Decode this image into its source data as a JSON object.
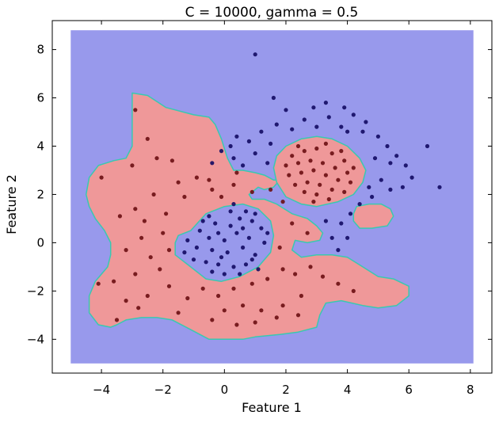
{
  "chart_data": {
    "type": "scatter",
    "title": "C = 10000, gamma = 0.5",
    "xlabel": "Feature 1",
    "ylabel": "Feature 2",
    "xlim": [
      -5.6,
      8.7
    ],
    "ylim": [
      -5.4,
      9.2
    ],
    "xticks": [
      -4,
      -2,
      0,
      2,
      4,
      6,
      8
    ],
    "xtick_labels": [
      "−4",
      "−2",
      "0",
      "2",
      "4",
      "6",
      "8"
    ],
    "yticks": [
      -4,
      -2,
      0,
      2,
      4,
      6,
      8
    ],
    "ytick_labels": [
      "−4",
      "−2",
      "0",
      "2",
      "4",
      "6",
      "8"
    ],
    "grid": false,
    "legend": "none",
    "background_region": {
      "class": 0,
      "x": [
        -5.0,
        8.1
      ],
      "y": [
        -5.0,
        8.8
      ],
      "color": "#9899ec"
    },
    "decision_regions": [
      {
        "class": 1,
        "color": "#ef9899",
        "polygon": [
          [
            -3.0,
            6.2
          ],
          [
            -2.5,
            6.1
          ],
          [
            -1.9,
            5.6
          ],
          [
            -1.0,
            5.3
          ],
          [
            -0.5,
            5.2
          ],
          [
            -0.3,
            4.9
          ],
          [
            -0.1,
            4.3
          ],
          [
            0.1,
            3.5
          ],
          [
            0.3,
            3.0
          ],
          [
            0.6,
            3.0
          ],
          [
            1.0,
            2.9
          ],
          [
            1.3,
            2.8
          ],
          [
            1.6,
            2.6
          ],
          [
            1.8,
            2.6
          ],
          [
            1.6,
            2.3
          ],
          [
            1.3,
            2.2
          ],
          [
            1.1,
            2.3
          ],
          [
            0.8,
            2.0
          ],
          [
            0.9,
            1.8
          ],
          [
            1.3,
            1.8
          ],
          [
            1.7,
            1.6
          ],
          [
            2.2,
            1.2
          ],
          [
            2.7,
            1.0
          ],
          [
            3.0,
            0.7
          ],
          [
            3.2,
            0.4
          ],
          [
            3.1,
            0.1
          ],
          [
            2.7,
            0.0
          ],
          [
            2.3,
            0.1
          ],
          [
            2.2,
            -0.3
          ],
          [
            2.5,
            -0.6
          ],
          [
            3.0,
            -0.5
          ],
          [
            3.5,
            -0.5
          ],
          [
            4.0,
            -0.6
          ],
          [
            4.5,
            -1.0
          ],
          [
            5.0,
            -1.4
          ],
          [
            5.5,
            -1.5
          ],
          [
            6.0,
            -1.8
          ],
          [
            6.0,
            -2.2
          ],
          [
            5.6,
            -2.6
          ],
          [
            5.0,
            -2.7
          ],
          [
            4.5,
            -2.6
          ],
          [
            3.8,
            -2.4
          ],
          [
            3.3,
            -2.5
          ],
          [
            3.1,
            -3.0
          ],
          [
            3.0,
            -3.5
          ],
          [
            2.4,
            -3.7
          ],
          [
            1.8,
            -3.8
          ],
          [
            1.0,
            -3.9
          ],
          [
            0.6,
            -4.0
          ],
          [
            0.0,
            -4.0
          ],
          [
            -0.5,
            -4.0
          ],
          [
            -1.1,
            -3.6
          ],
          [
            -1.7,
            -3.2
          ],
          [
            -2.2,
            -3.1
          ],
          [
            -2.7,
            -3.1
          ],
          [
            -3.2,
            -3.2
          ],
          [
            -3.5,
            -3.4
          ],
          [
            -3.7,
            -3.5
          ],
          [
            -4.1,
            -3.4
          ],
          [
            -4.4,
            -2.9
          ],
          [
            -4.4,
            -2.2
          ],
          [
            -4.2,
            -1.6
          ],
          [
            -3.8,
            -1.0
          ],
          [
            -3.7,
            -0.5
          ],
          [
            -3.7,
            0.0
          ],
          [
            -3.9,
            0.5
          ],
          [
            -4.2,
            1.0
          ],
          [
            -4.4,
            1.5
          ],
          [
            -4.5,
            2.0
          ],
          [
            -4.4,
            2.7
          ],
          [
            -4.1,
            3.2
          ],
          [
            -3.6,
            3.4
          ],
          [
            -3.2,
            3.5
          ],
          [
            -3.0,
            4.0
          ],
          [
            -3.0,
            4.6
          ],
          [
            -3.0,
            5.3
          ]
        ]
      },
      {
        "class": 1,
        "color": "#ef9899",
        "polygon": [
          [
            2.0,
            4.0
          ],
          [
            2.5,
            4.3
          ],
          [
            3.0,
            4.4
          ],
          [
            3.5,
            4.3
          ],
          [
            4.0,
            4.0
          ],
          [
            4.4,
            3.5
          ],
          [
            4.6,
            3.0
          ],
          [
            4.5,
            2.5
          ],
          [
            4.2,
            2.0
          ],
          [
            3.7,
            1.7
          ],
          [
            3.0,
            1.5
          ],
          [
            2.5,
            1.6
          ],
          [
            2.0,
            1.9
          ],
          [
            1.7,
            2.5
          ],
          [
            1.6,
            3.1
          ],
          [
            1.7,
            3.6
          ]
        ]
      },
      {
        "class": 1,
        "color": "#ef9899",
        "polygon": [
          [
            4.3,
            1.5
          ],
          [
            4.7,
            1.6
          ],
          [
            5.1,
            1.6
          ],
          [
            5.4,
            1.4
          ],
          [
            5.5,
            1.1
          ],
          [
            5.3,
            0.7
          ],
          [
            4.8,
            0.6
          ],
          [
            4.4,
            0.6
          ],
          [
            4.2,
            0.9
          ],
          [
            4.2,
            1.2
          ]
        ]
      }
    ],
    "decision_holes": [
      {
        "class": 0,
        "color": "#9899ec",
        "polygon": [
          [
            -1.1,
            0.5
          ],
          [
            -0.6,
            1.2
          ],
          [
            0.0,
            1.5
          ],
          [
            0.6,
            1.6
          ],
          [
            1.1,
            1.4
          ],
          [
            1.5,
            0.9
          ],
          [
            1.6,
            0.3
          ],
          [
            1.5,
            -0.4
          ],
          [
            1.1,
            -1.0
          ],
          [
            0.5,
            -1.4
          ],
          [
            -0.1,
            -1.6
          ],
          [
            -0.6,
            -1.5
          ],
          [
            -1.1,
            -1.0
          ],
          [
            -1.6,
            -0.5
          ],
          [
            -1.6,
            0.0
          ],
          [
            -1.5,
            0.3
          ]
        ]
      }
    ],
    "boundary_color": "#39c9b0",
    "series": [
      {
        "class": 0,
        "color": "#120a63",
        "points": [
          [
            0.2,
            1.3
          ],
          [
            0.5,
            1.0
          ],
          [
            -0.3,
            0.8
          ],
          [
            -0.8,
            0.5
          ],
          [
            0.9,
            0.9
          ],
          [
            1.2,
            0.6
          ],
          [
            -0.5,
            0.2
          ],
          [
            0.0,
            0.1
          ],
          [
            0.4,
            0.4
          ],
          [
            0.8,
            0.2
          ],
          [
            1.3,
            0.0
          ],
          [
            -1.2,
            0.1
          ],
          [
            -0.9,
            -0.2
          ],
          [
            -0.4,
            -0.3
          ],
          [
            0.1,
            -0.4
          ],
          [
            0.6,
            -0.2
          ],
          [
            1.0,
            -0.5
          ],
          [
            -1.0,
            -0.7
          ],
          [
            -0.6,
            -0.8
          ],
          [
            -0.2,
            -0.9
          ],
          [
            0.3,
            -1.0
          ],
          [
            0.7,
            -0.9
          ],
          [
            1.1,
            -1.1
          ],
          [
            -0.4,
            -1.2
          ],
          [
            0.0,
            -1.3
          ],
          [
            0.5,
            -1.3
          ],
          [
            -0.7,
            0.9
          ],
          [
            0.2,
            0.7
          ],
          [
            -0.2,
            0.4
          ],
          [
            0.6,
            0.6
          ],
          [
            -1.3,
            -0.4
          ],
          [
            1.4,
            0.4
          ],
          [
            -0.1,
            -0.6
          ],
          [
            0.9,
            -0.7
          ],
          [
            0.3,
            1.6
          ],
          [
            0.7,
            1.3
          ],
          [
            -0.5,
            1.1
          ],
          [
            1.0,
            1.2
          ],
          [
            0.6,
            3.2
          ],
          [
            0.3,
            3.5
          ],
          [
            1.0,
            3.7
          ],
          [
            0.2,
            4.0
          ],
          [
            0.8,
            4.2
          ],
          [
            1.5,
            4.1
          ],
          [
            1.2,
            4.6
          ],
          [
            1.7,
            4.9
          ],
          [
            2.2,
            4.7
          ],
          [
            1.6,
            6.0
          ],
          [
            1.0,
            7.8
          ],
          [
            2.6,
            5.1
          ],
          [
            3.0,
            4.8
          ],
          [
            3.4,
            5.2
          ],
          [
            3.8,
            4.8
          ],
          [
            4.2,
            5.3
          ],
          [
            4.6,
            5.0
          ],
          [
            4.0,
            4.6
          ],
          [
            2.9,
            5.6
          ],
          [
            3.3,
            5.8
          ],
          [
            3.9,
            5.6
          ],
          [
            4.5,
            4.6
          ],
          [
            5.0,
            4.4
          ],
          [
            5.3,
            4.0
          ],
          [
            5.6,
            3.6
          ],
          [
            5.9,
            3.2
          ],
          [
            5.4,
            3.3
          ],
          [
            4.9,
            3.5
          ],
          [
            5.8,
            2.3
          ],
          [
            5.4,
            2.2
          ],
          [
            5.1,
            2.6
          ],
          [
            4.7,
            2.3
          ],
          [
            4.8,
            1.9
          ],
          [
            4.4,
            1.6
          ],
          [
            4.1,
            1.2
          ],
          [
            3.8,
            0.8
          ],
          [
            3.3,
            0.9
          ],
          [
            3.5,
            0.2
          ],
          [
            4.0,
            0.2
          ],
          [
            3.7,
            -0.3
          ],
          [
            6.6,
            4.0
          ],
          [
            6.1,
            2.7
          ],
          [
            7.0,
            2.3
          ],
          [
            -0.4,
            3.3
          ],
          [
            -0.1,
            3.8
          ],
          [
            0.4,
            4.4
          ],
          [
            1.4,
            3.3
          ],
          [
            2.0,
            5.5
          ]
        ]
      },
      {
        "class": 1,
        "color": "#6a0e12",
        "points": [
          [
            2.2,
            3.6
          ],
          [
            2.6,
            3.8
          ],
          [
            3.0,
            3.9
          ],
          [
            3.5,
            3.7
          ],
          [
            3.9,
            3.4
          ],
          [
            4.2,
            3.1
          ],
          [
            2.0,
            3.2
          ],
          [
            2.4,
            3.3
          ],
          [
            2.8,
            3.4
          ],
          [
            3.2,
            3.3
          ],
          [
            3.6,
            3.1
          ],
          [
            4.0,
            2.9
          ],
          [
            2.1,
            2.8
          ],
          [
            2.5,
            2.9
          ],
          [
            2.9,
            3.0
          ],
          [
            3.3,
            2.8
          ],
          [
            3.7,
            2.6
          ],
          [
            4.1,
            2.5
          ],
          [
            2.3,
            2.4
          ],
          [
            2.7,
            2.5
          ],
          [
            3.1,
            2.4
          ],
          [
            3.5,
            2.2
          ],
          [
            3.9,
            2.1
          ],
          [
            2.6,
            2.1
          ],
          [
            3.0,
            2.0
          ],
          [
            3.4,
            1.8
          ],
          [
            2.9,
            1.7
          ],
          [
            3.8,
            3.8
          ],
          [
            2.4,
            4.0
          ],
          [
            3.3,
            4.1
          ],
          [
            -2.5,
            4.3
          ],
          [
            -2.9,
            5.5
          ],
          [
            -2.2,
            3.5
          ],
          [
            -3.0,
            3.2
          ],
          [
            -4.0,
            2.7
          ],
          [
            -1.7,
            3.4
          ],
          [
            -1.5,
            2.5
          ],
          [
            -0.9,
            2.7
          ],
          [
            -0.4,
            2.2
          ],
          [
            0.3,
            2.4
          ],
          [
            -2.3,
            2.0
          ],
          [
            -2.9,
            1.4
          ],
          [
            -3.4,
            1.1
          ],
          [
            -2.6,
            0.9
          ],
          [
            -1.9,
            1.2
          ],
          [
            -1.3,
            1.9
          ],
          [
            -2.0,
            0.4
          ],
          [
            -2.7,
            0.2
          ],
          [
            -3.2,
            -0.3
          ],
          [
            -2.4,
            -0.6
          ],
          [
            -1.8,
            -0.3
          ],
          [
            -2.1,
            -1.1
          ],
          [
            -2.9,
            -1.3
          ],
          [
            -3.6,
            -1.6
          ],
          [
            -3.2,
            -2.4
          ],
          [
            -3.5,
            -3.2
          ],
          [
            -2.5,
            -2.2
          ],
          [
            -1.8,
            -1.8
          ],
          [
            -1.2,
            -2.3
          ],
          [
            -0.7,
            -1.9
          ],
          [
            -0.2,
            -2.2
          ],
          [
            0.3,
            -1.9
          ],
          [
            0.9,
            -1.7
          ],
          [
            1.4,
            -1.5
          ],
          [
            1.9,
            -1.1
          ],
          [
            2.3,
            -1.3
          ],
          [
            2.8,
            -1.0
          ],
          [
            3.2,
            -1.4
          ],
          [
            3.7,
            -1.7
          ],
          [
            4.2,
            -2.0
          ],
          [
            2.5,
            -2.2
          ],
          [
            1.9,
            -2.6
          ],
          [
            1.2,
            -2.8
          ],
          [
            0.6,
            -2.6
          ],
          [
            0.0,
            -2.8
          ],
          [
            -0.4,
            -3.2
          ],
          [
            0.4,
            -3.4
          ],
          [
            1.0,
            -3.3
          ],
          [
            1.7,
            -3.1
          ],
          [
            2.4,
            -3.0
          ],
          [
            -1.5,
            -2.9
          ],
          [
            -2.8,
            -2.7
          ],
          [
            -4.1,
            -1.7
          ],
          [
            1.5,
            2.2
          ],
          [
            1.9,
            1.7
          ],
          [
            2.2,
            0.8
          ],
          [
            2.7,
            0.4
          ],
          [
            1.8,
            -0.2
          ],
          [
            -0.1,
            1.9
          ],
          [
            -0.5,
            2.6
          ],
          [
            0.4,
            2.9
          ],
          [
            0.9,
            2.1
          ]
        ]
      }
    ]
  }
}
